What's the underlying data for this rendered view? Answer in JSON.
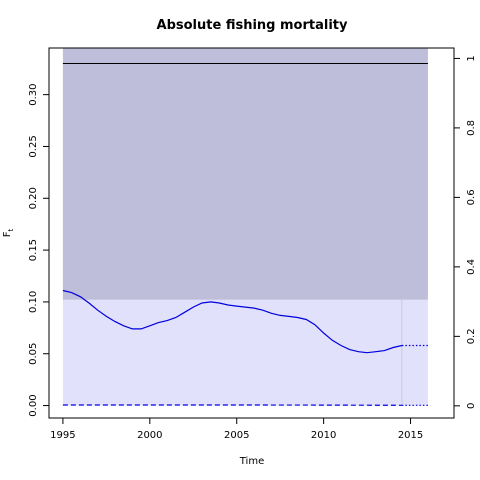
{
  "chart_data": {
    "type": "line",
    "title": "Absolute fishing mortality",
    "xlabel": "Time",
    "ylabel": "F",
    "ylabel_sub": "t",
    "xlim": [
      1994.2,
      2017.5
    ],
    "ylim": [
      -0.012,
      0.345
    ],
    "x_ticks": [
      1995,
      2000,
      2005,
      2010,
      2015
    ],
    "x_tick_labels": [
      "1995",
      "2000",
      "2005",
      "2010",
      "2015"
    ],
    "y_ticks": [
      0.0,
      0.05,
      0.1,
      0.15,
      0.2,
      0.25,
      0.3
    ],
    "y_tick_labels": [
      "0.00",
      "0.05",
      "0.10",
      "0.15",
      "0.20",
      "0.25",
      "0.30"
    ],
    "right_axis": {
      "ylim": [
        -0.035,
        1.03
      ],
      "ticks": [
        0,
        0.2,
        0.4,
        0.6,
        0.8,
        1
      ],
      "tick_labels": [
        "0",
        "0.2",
        "0.4",
        "0.6",
        "0.8",
        "1"
      ]
    },
    "bands": [
      {
        "x": [
          1995,
          2016
        ],
        "y": [
          0.102,
          0.345
        ],
        "color": "#bebedb"
      },
      {
        "x": [
          1995,
          2016
        ],
        "y": [
          0.0,
          0.102
        ],
        "color": "#e1e1fb"
      }
    ],
    "reference_line": {
      "y": 0.33,
      "color": "#000000"
    },
    "last_year_marker": {
      "x": 2014.5,
      "color": "#c8c8dc"
    },
    "series": [
      {
        "style": "solid",
        "color": "#0000dd",
        "x": [
          1995,
          1995.5,
          1996,
          1996.5,
          1997,
          1997.5,
          1998,
          1998.5,
          1999,
          1999.5,
          2000,
          2000.5,
          2001,
          2001.5,
          2002,
          2002.5,
          2003,
          2003.5,
          2004,
          2004.5,
          2005,
          2005.5,
          2006,
          2006.5,
          2007,
          2007.5,
          2008,
          2008.5,
          2009,
          2009.5,
          2010,
          2010.5,
          2011,
          2011.5,
          2012,
          2012.5,
          2013,
          2013.5,
          2014,
          2014.5
        ],
        "y": [
          0.111,
          0.109,
          0.105,
          0.099,
          0.092,
          0.086,
          0.081,
          0.077,
          0.074,
          0.074,
          0.077,
          0.08,
          0.082,
          0.085,
          0.09,
          0.095,
          0.099,
          0.1,
          0.099,
          0.097,
          0.096,
          0.095,
          0.094,
          0.092,
          0.089,
          0.087,
          0.086,
          0.085,
          0.083,
          0.078,
          0.07,
          0.063,
          0.058,
          0.054,
          0.052,
          0.051,
          0.052,
          0.053,
          0.056,
          0.058
        ]
      },
      {
        "style": "dotted",
        "color": "#0000dd",
        "x": [
          2014.5,
          2015,
          2015.5,
          2016
        ],
        "y": [
          0.058,
          0.058,
          0.058,
          0.058
        ]
      },
      {
        "style": "dashed",
        "color": "#0000dd",
        "x": [
          1995,
          2000,
          2005,
          2010,
          2014.5
        ],
        "y": [
          0.0005,
          0.0005,
          0.0005,
          0.0004,
          0.0003
        ]
      },
      {
        "style": "dotted",
        "color": "#0000dd",
        "x": [
          2014.5,
          2016
        ],
        "y": [
          0.0003,
          0.0003
        ]
      }
    ]
  }
}
